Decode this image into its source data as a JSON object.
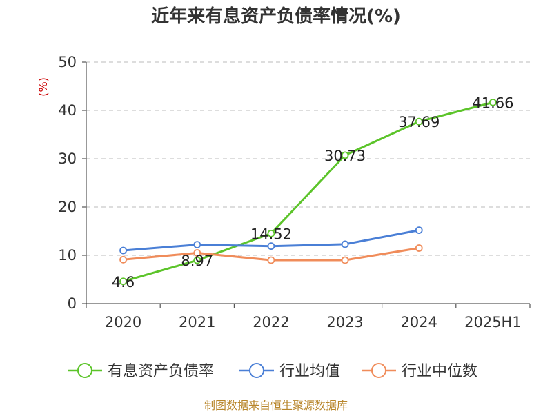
{
  "chart_data": {
    "type": "line",
    "title": "近年来有息资产负债率情况(%)",
    "ylabel": "(%)",
    "categories": [
      "2020",
      "2021",
      "2022",
      "2023",
      "2024",
      "2025H1"
    ],
    "ylim": [
      0,
      50
    ],
    "yticks": [
      "0",
      "10",
      "20",
      "30",
      "40",
      "50"
    ],
    "grid": true,
    "legend_position": "bottom",
    "series": [
      {
        "name": "有息资产负债率",
        "color": "#5cc42a",
        "values": [
          4.6,
          8.97,
          14.52,
          30.73,
          37.69,
          41.66
        ],
        "labels": [
          "4.6",
          "8.97",
          "14.52",
          "30.73",
          "37.69",
          "41.66"
        ]
      },
      {
        "name": "行业均值",
        "color": "#4a7fd6",
        "values": [
          11.0,
          12.2,
          11.9,
          12.3,
          15.2,
          null
        ]
      },
      {
        "name": "行业中位数",
        "color": "#f08c5a",
        "values": [
          9.1,
          10.5,
          9.0,
          9.0,
          11.5,
          null
        ]
      }
    ],
    "source": "制图数据来自恒生聚源数据库"
  }
}
